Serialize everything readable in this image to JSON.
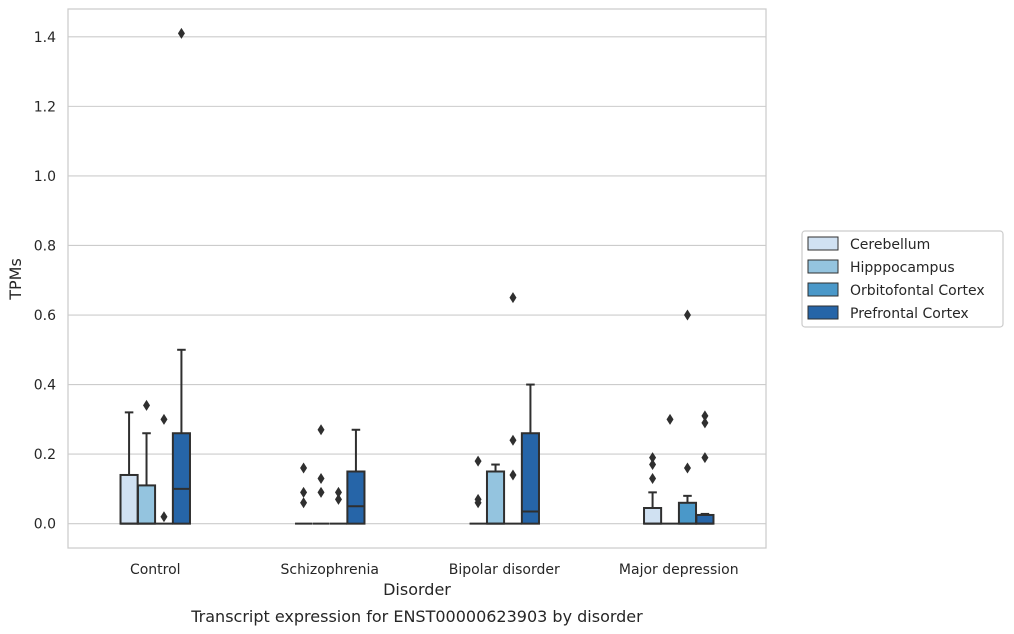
{
  "chart_data": {
    "type": "box",
    "caption": "Transcript expression for ENST00000623903 by disorder",
    "xlabel": "Disorder",
    "ylabel": "TPMs",
    "ylim": [
      -0.07,
      1.48
    ],
    "yticks": [
      "0.0",
      "0.2",
      "0.4",
      "0.6",
      "0.8",
      "1.0",
      "1.2",
      "1.4"
    ],
    "grid": "horizontal",
    "legend_position": "right",
    "categories": [
      "Control",
      "Schizophrenia",
      "Bipolar disorder",
      "Major depression"
    ],
    "series": [
      {
        "name": "Cerebellum",
        "color": "#d0e1f2",
        "boxes": [
          {
            "q1": 0.0,
            "median": 0.0,
            "q3": 0.14,
            "whisker_low": 0.0,
            "whisker_high": 0.32,
            "outliers": []
          },
          {
            "q1": 0.0,
            "median": 0.0,
            "q3": 0.0,
            "whisker_low": 0.0,
            "whisker_high": 0.0,
            "outliers": [
              0.06,
              0.09,
              0.16
            ]
          },
          {
            "q1": 0.0,
            "median": 0.0,
            "q3": 0.0,
            "whisker_low": 0.0,
            "whisker_high": 0.0,
            "outliers": [
              0.06,
              0.07,
              0.18
            ]
          },
          {
            "q1": 0.0,
            "median": 0.0,
            "q3": 0.045,
            "whisker_low": 0.0,
            "whisker_high": 0.09,
            "outliers": [
              0.13,
              0.17,
              0.19
            ]
          }
        ]
      },
      {
        "name": "Hipppocampus",
        "color": "#94c4df",
        "boxes": [
          {
            "q1": 0.0,
            "median": 0.0,
            "q3": 0.11,
            "whisker_low": 0.0,
            "whisker_high": 0.26,
            "outliers": [
              0.34
            ]
          },
          {
            "q1": 0.0,
            "median": 0.0,
            "q3": 0.0,
            "whisker_low": 0.0,
            "whisker_high": 0.0,
            "outliers": [
              0.09,
              0.13,
              0.27
            ]
          },
          {
            "q1": 0.0,
            "median": 0.0,
            "q3": 0.15,
            "whisker_low": 0.0,
            "whisker_high": 0.17,
            "outliers": []
          },
          {
            "q1": 0.0,
            "median": 0.0,
            "q3": 0.0,
            "whisker_low": 0.0,
            "whisker_high": 0.0,
            "outliers": [
              0.3
            ]
          }
        ]
      },
      {
        "name": "Orbitofontal Cortex",
        "color": "#4a98c9",
        "boxes": [
          {
            "q1": 0.0,
            "median": 0.0,
            "q3": 0.0,
            "whisker_low": 0.0,
            "whisker_high": 0.0,
            "outliers": [
              0.02,
              0.3
            ]
          },
          {
            "q1": 0.0,
            "median": 0.0,
            "q3": 0.0,
            "whisker_low": 0.0,
            "whisker_high": 0.0,
            "outliers": [
              0.07,
              0.09
            ]
          },
          {
            "q1": 0.0,
            "median": 0.0,
            "q3": 0.0,
            "whisker_low": 0.0,
            "whisker_high": 0.0,
            "outliers": [
              0.14,
              0.24,
              0.65
            ]
          },
          {
            "q1": 0.0,
            "median": 0.0,
            "q3": 0.06,
            "whisker_low": 0.0,
            "whisker_high": 0.08,
            "outliers": [
              0.16,
              0.6
            ]
          }
        ]
      },
      {
        "name": "Prefrontal Cortex",
        "color": "#2665a8",
        "boxes": [
          {
            "q1": 0.0,
            "median": 0.1,
            "q3": 0.26,
            "whisker_low": 0.0,
            "whisker_high": 0.5,
            "outliers": [
              1.41
            ]
          },
          {
            "q1": 0.0,
            "median": 0.05,
            "q3": 0.15,
            "whisker_low": 0.0,
            "whisker_high": 0.27,
            "outliers": []
          },
          {
            "q1": 0.0,
            "median": 0.035,
            "q3": 0.26,
            "whisker_low": 0.0,
            "whisker_high": 0.4,
            "outliers": []
          },
          {
            "q1": 0.0,
            "median": 0.0,
            "q3": 0.025,
            "whisker_low": 0.0,
            "whisker_high": 0.028,
            "outliers": [
              0.19,
              0.29,
              0.31
            ]
          }
        ]
      }
    ]
  }
}
